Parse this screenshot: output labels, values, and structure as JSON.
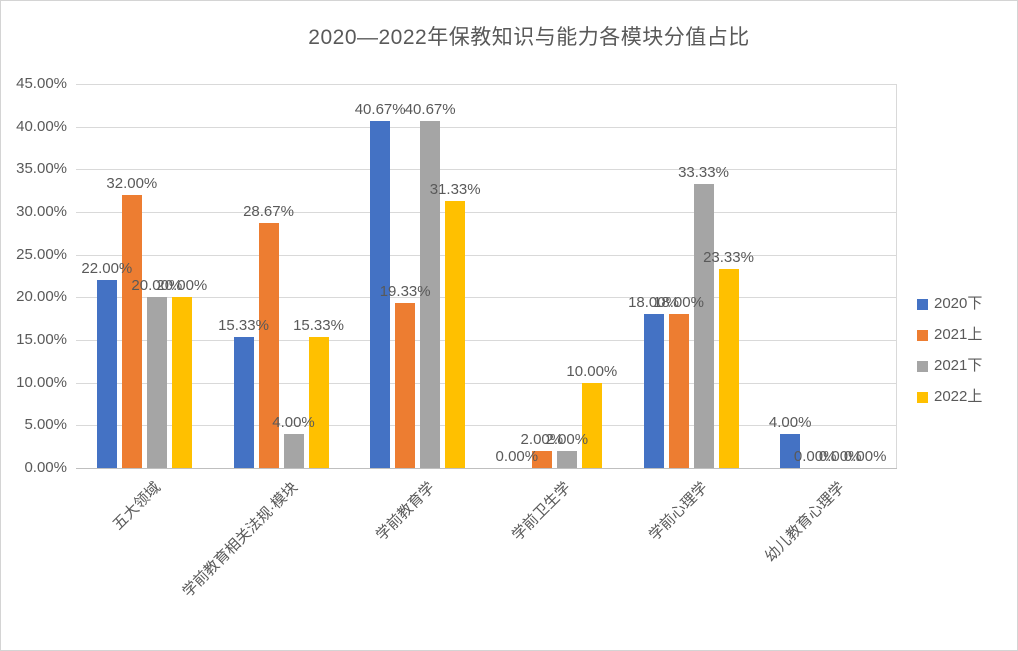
{
  "chart_data": {
    "type": "bar",
    "title": "2020—2022年保教知识与能力各模块分值占比",
    "categories": [
      "五大领域",
      "学前教育相关法规·模块",
      "学前教育学",
      "学前卫生学",
      "学前心理学",
      "幼儿教育心理学"
    ],
    "series": [
      {
        "name": "2020下",
        "color": "#4472C4",
        "values": [
          22.0,
          15.33,
          40.67,
          0.0,
          18.0,
          4.0
        ]
      },
      {
        "name": "2021上",
        "color": "#ED7D31",
        "values": [
          32.0,
          28.67,
          19.33,
          2.0,
          18.0,
          0.0
        ]
      },
      {
        "name": "2021下",
        "color": "#A5A5A5",
        "values": [
          20.0,
          4.0,
          40.67,
          2.0,
          33.33,
          0.0
        ]
      },
      {
        "name": "2022上",
        "color": "#FFC000",
        "values": [
          20.0,
          15.33,
          31.33,
          10.0,
          23.33,
          0.0
        ]
      }
    ],
    "ylim": [
      0,
      45
    ],
    "ytick_step": 5,
    "ytick_labels": [
      "0.00%",
      "5.00%",
      "10.00%",
      "15.00%",
      "20.00%",
      "25.00%",
      "30.00%",
      "35.00%",
      "40.00%",
      "45.00%"
    ],
    "value_label_format": "0.00%",
    "grid": true,
    "legend_position": "right",
    "colors": {
      "text": "#595959",
      "gridline": "#d9d9d9",
      "axis_line": "#bfbfbf",
      "background": "#ffffff"
    }
  }
}
